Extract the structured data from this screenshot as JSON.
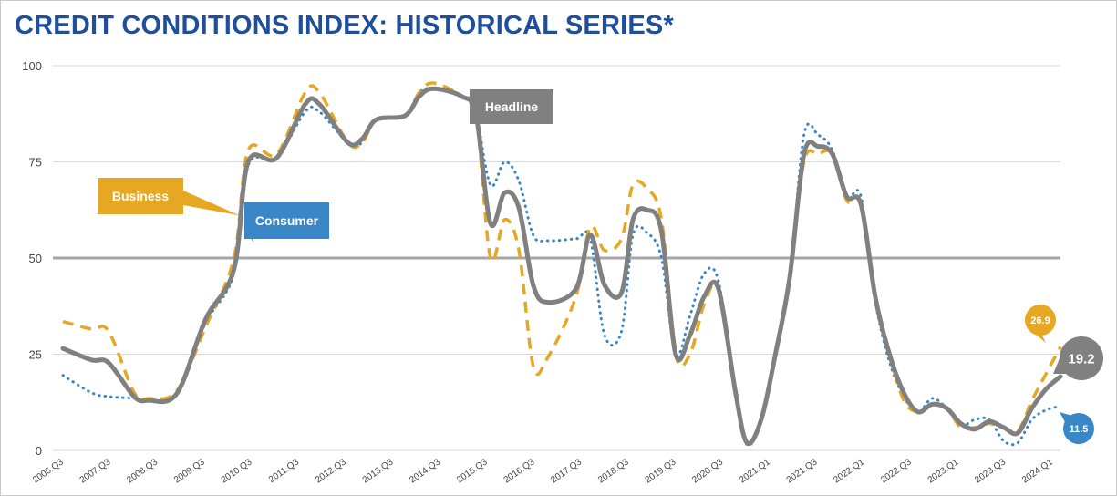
{
  "title": "CREDIT CONDITIONS INDEX: HISTORICAL SERIES*",
  "colors": {
    "title": "#1f4f9c",
    "headline": "#808080",
    "business": "#e6a823",
    "consumer": "#3a87c8",
    "grid": "#d9d9d9",
    "midline": "#a6a6a6"
  },
  "chart_data": {
    "type": "line",
    "ylim": [
      0,
      100
    ],
    "yticks": [
      "0",
      "25",
      "50",
      "75",
      "100"
    ],
    "reference_line": 50,
    "xlim": [
      2006.5,
      2024.0
    ],
    "xticks": [
      "2006.Q3",
      "2007.Q3",
      "2008.Q3",
      "2009.Q3",
      "2010.Q3",
      "2011.Q3",
      "2012.Q3",
      "2013.Q3",
      "2014.Q3",
      "2015.Q3",
      "2016.Q3",
      "2017.Q3",
      "2018.Q3",
      "2019.Q3",
      "2020.Q3",
      "2021.Q1",
      "2021.Q3",
      "2022.Q1",
      "2022.Q3",
      "2023.Q1",
      "2023.Q3",
      "2024.Q1"
    ],
    "series": [
      {
        "name": "Headline",
        "style": "solid",
        "color": "#808080",
        "end_label": "19.2",
        "x": [
          2006.5,
          2007.0,
          2007.3,
          2007.75,
          2008.0,
          2008.5,
          2009.0,
          2009.5,
          2009.75,
          2010.25,
          2010.75,
          2011.0,
          2011.5,
          2011.75,
          2012.0,
          2012.5,
          2012.75,
          2013.0,
          2013.5,
          2013.75,
          2014.0,
          2014.25,
          2014.5,
          2014.75,
          2015.0,
          2015.5,
          2015.75,
          2016.0,
          2016.3,
          2016.5,
          2016.75,
          2017.0,
          2017.25,
          2017.5,
          2017.75,
          2018.0,
          2018.3,
          2018.5,
          2018.75,
          2019.0,
          2019.25,
          2019.5,
          2019.75,
          2020.0,
          2020.25,
          2020.5,
          2020.75,
          2021.0,
          2021.25,
          2021.5,
          2021.75,
          2022.0,
          2022.25,
          2022.5,
          2022.75,
          2023.0,
          2023.25,
          2023.5,
          2023.75,
          2024.0
        ],
        "y": [
          26.5,
          23.5,
          22.8,
          14.0,
          13.0,
          14.8,
          34.0,
          47.0,
          75.0,
          76.0,
          90.0,
          90.0,
          80.0,
          81.0,
          86.0,
          87.0,
          92.0,
          94.0,
          92.0,
          87.0,
          59.0,
          67.0,
          63.0,
          43.0,
          38.5,
          42.0,
          56.0,
          43.0,
          41.0,
          60.0,
          62.5,
          57.0,
          25.0,
          30.0,
          40.0,
          42.0,
          15.0,
          2.0,
          8.0,
          25.0,
          45.0,
          77.0,
          79.0,
          77.0,
          66.0,
          64.0,
          40.0,
          25.0,
          15.0,
          10.0,
          12.0,
          11.0,
          7.0,
          5.5,
          7.5,
          6.0,
          4.5,
          11.0,
          16.0,
          19.2
        ]
      },
      {
        "name": "Business",
        "style": "dashed",
        "color": "#e6a823",
        "end_label": "26.9",
        "x": [
          2006.5,
          2007.0,
          2007.3,
          2007.75,
          2008.0,
          2008.5,
          2009.0,
          2009.5,
          2009.75,
          2010.25,
          2010.75,
          2011.0,
          2011.5,
          2011.75,
          2012.0,
          2012.5,
          2012.75,
          2013.0,
          2013.5,
          2013.75,
          2014.0,
          2014.25,
          2014.5,
          2014.75,
          2015.0,
          2015.5,
          2015.75,
          2016.0,
          2016.3,
          2016.5,
          2016.75,
          2017.0,
          2017.25,
          2017.5,
          2017.75,
          2018.0,
          2018.3,
          2018.5,
          2018.75,
          2019.0,
          2019.25,
          2019.5,
          2019.75,
          2020.0,
          2020.25,
          2020.5,
          2020.75,
          2021.0,
          2021.25,
          2021.5,
          2021.75,
          2022.0,
          2022.25,
          2022.5,
          2022.75,
          2023.0,
          2023.25,
          2023.5,
          2023.75,
          2024.0
        ],
        "y": [
          33.5,
          31.5,
          31.0,
          15.0,
          13.5,
          15.5,
          32.0,
          50.0,
          78.0,
          77.0,
          93.0,
          93.0,
          80.0,
          80.0,
          86.0,
          87.0,
          93.0,
          95.5,
          92.0,
          87.0,
          50.0,
          60.0,
          52.0,
          22.0,
          24.0,
          40.0,
          58.0,
          52.0,
          55.0,
          69.0,
          68.0,
          60.0,
          25.0,
          25.0,
          38.0,
          42.0,
          15.0,
          2.5,
          8.0,
          25.0,
          45.0,
          75.0,
          77.0,
          77.0,
          65.0,
          64.0,
          40.0,
          25.0,
          13.0,
          10.0,
          12.0,
          11.0,
          6.0,
          6.0,
          7.0,
          6.0,
          5.0,
          13.0,
          20.0,
          26.9
        ]
      },
      {
        "name": "Consumer",
        "style": "dotted",
        "color": "#3a87c8",
        "end_label": "11.5",
        "x": [
          2006.5,
          2007.0,
          2007.3,
          2007.75,
          2008.0,
          2008.5,
          2009.0,
          2009.5,
          2009.75,
          2010.25,
          2010.75,
          2011.0,
          2011.5,
          2011.75,
          2012.0,
          2012.5,
          2012.75,
          2013.0,
          2013.5,
          2013.75,
          2014.0,
          2014.25,
          2014.5,
          2014.75,
          2015.0,
          2015.5,
          2015.75,
          2016.0,
          2016.3,
          2016.5,
          2016.75,
          2017.0,
          2017.25,
          2017.5,
          2017.75,
          2018.0,
          2018.3,
          2018.5,
          2018.75,
          2019.0,
          2019.25,
          2019.5,
          2019.75,
          2020.0,
          2020.25,
          2020.5,
          2020.75,
          2021.0,
          2021.25,
          2021.5,
          2021.75,
          2022.0,
          2022.25,
          2022.5,
          2022.75,
          2023.0,
          2023.25,
          2023.5,
          2023.75,
          2024.0
        ],
        "y": [
          19.5,
          15.0,
          14.0,
          13.5,
          13.0,
          14.5,
          33.0,
          46.0,
          74.0,
          76.0,
          88.0,
          88.0,
          80.0,
          80.0,
          86.0,
          87.0,
          93.0,
          94.0,
          92.0,
          87.0,
          69.0,
          75.0,
          70.0,
          56.0,
          54.5,
          55.0,
          55.0,
          30.0,
          31.0,
          56.0,
          56.5,
          50.0,
          25.0,
          35.0,
          46.0,
          44.0,
          15.0,
          1.5,
          8.0,
          25.0,
          45.0,
          82.0,
          82.0,
          78.0,
          66.0,
          66.0,
          39.0,
          23.0,
          14.0,
          10.0,
          13.5,
          11.0,
          6.5,
          8.0,
          8.0,
          2.5,
          2.0,
          8.0,
          10.5,
          11.5
        ]
      }
    ],
    "callouts": [
      {
        "series": "Headline",
        "text": "Headline",
        "at_x": 2013.8,
        "at_y": 87.0
      },
      {
        "series": "Business",
        "text": "Business",
        "at_x": 2009.6,
        "at_y": 62.0
      },
      {
        "series": "Consumer",
        "text": "Consumer",
        "at_x": 2009.85,
        "at_y": 55.0
      }
    ]
  }
}
